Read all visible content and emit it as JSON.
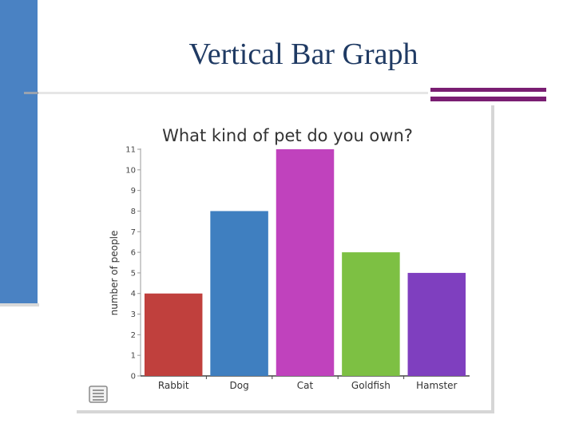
{
  "slide": {
    "title": "Vertical Bar Graph"
  },
  "colors": {
    "side_bar": "#4a82c3",
    "accent": "#7a1e72",
    "title": "#1f3a63"
  },
  "icons": {
    "notes": "notes-list-icon"
  },
  "chart_data": {
    "type": "bar",
    "title": "What kind of pet do you own?",
    "xlabel": "",
    "ylabel": "number of people",
    "categories": [
      "Rabbit",
      "Dog",
      "Cat",
      "Goldfish",
      "Hamster"
    ],
    "values": [
      4,
      8,
      11,
      6,
      5
    ],
    "colors": [
      "#c0403d",
      "#3f7fc0",
      "#c042bd",
      "#7dc043",
      "#7f3fbf"
    ],
    "ylim": [
      0,
      11
    ],
    "yticks": [
      "0",
      "1",
      "2",
      "3",
      "4",
      "5",
      "6",
      "7",
      "8",
      "9",
      "10",
      "11"
    ],
    "grid": false
  }
}
